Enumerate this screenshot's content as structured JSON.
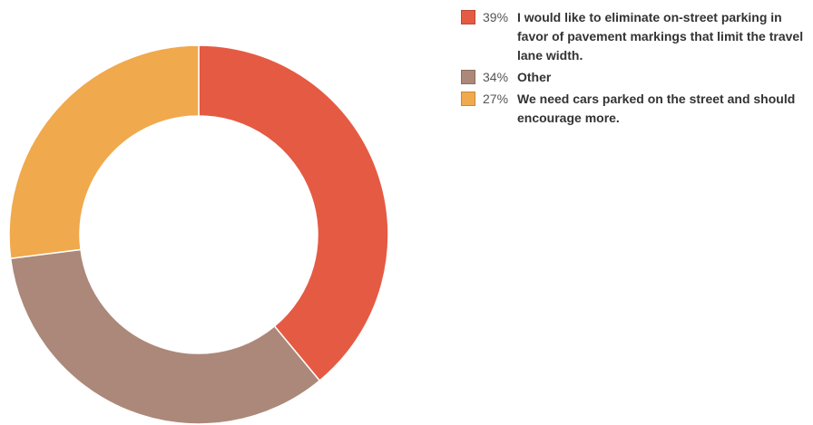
{
  "chart_data": {
    "type": "pie",
    "donut": true,
    "legend_position": "right",
    "slices": [
      {
        "percent_label": "39%",
        "value": 39,
        "label": "I would like to eliminate on-street parking in favor of pavement markings that limit the travel lane width.",
        "color": "#e55a43"
      },
      {
        "percent_label": "34%",
        "value": 34,
        "label": "Other",
        "color": "#ab8879"
      },
      {
        "percent_label": "27%",
        "value": 27,
        "label": "We need cars parked on the street and should encourage more.",
        "color": "#f0a94d"
      }
    ]
  }
}
